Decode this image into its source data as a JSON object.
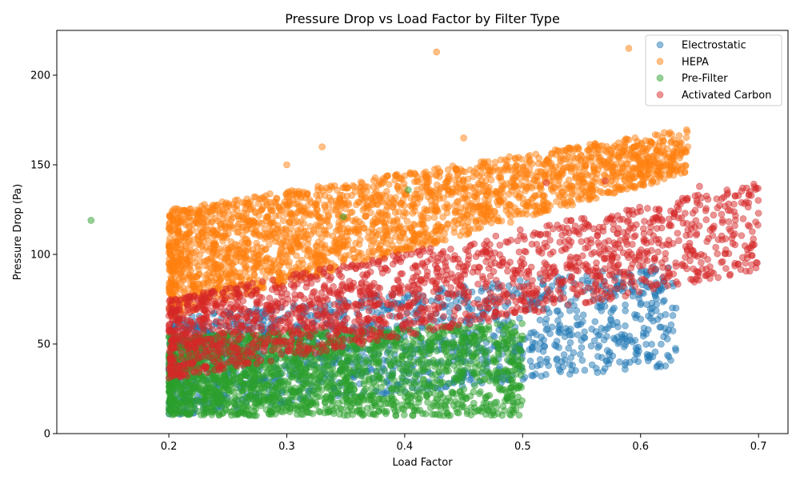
{
  "chart_data": {
    "type": "scatter",
    "title": "Pressure Drop vs Load Factor by Filter Type",
    "xlabel": "Load Factor",
    "ylabel": "Pressure Drop (Pa)",
    "xlim": [
      0.105,
      0.725
    ],
    "ylim": [
      0,
      225
    ],
    "xticks": [
      "0.2",
      "0.3",
      "0.4",
      "0.5",
      "0.6",
      "0.7"
    ],
    "xtick_values": [
      0.2,
      0.3,
      0.4,
      0.5,
      0.6,
      0.7
    ],
    "yticks": [
      "0",
      "50",
      "100",
      "150",
      "200"
    ],
    "ytick_values": [
      0,
      50,
      100,
      150,
      200
    ],
    "grid": false,
    "legend_position": "top-right",
    "marker_alpha": 0.5,
    "series": [
      {
        "name": "Electrostatic",
        "color": "#1f77b4",
        "cloud": {
          "x_range": [
            0.2,
            0.63
          ],
          "y_low": [
            10,
            38
          ],
          "y_high": [
            65,
            95
          ],
          "count": 1400
        },
        "points": [
          [
            0.54,
            55
          ],
          [
            0.58,
            62
          ],
          [
            0.6,
            72
          ],
          [
            0.62,
            85
          ],
          [
            0.55,
            48
          ],
          [
            0.52,
            40
          ],
          [
            0.57,
            58
          ],
          [
            0.6,
            90
          ],
          [
            0.63,
            70
          ],
          [
            0.5,
            45
          ]
        ]
      },
      {
        "name": "HEPA",
        "color": "#ff7f0e",
        "cloud": {
          "x_range": [
            0.2,
            0.64
          ],
          "y_low": [
            65,
            145
          ],
          "y_high": [
            125,
            170
          ],
          "count": 2400
        },
        "points": [
          [
            0.427,
            213
          ],
          [
            0.59,
            215
          ],
          [
            0.62,
            168
          ],
          [
            0.64,
            160
          ],
          [
            0.33,
            160
          ],
          [
            0.3,
            150
          ],
          [
            0.45,
            165
          ]
        ]
      },
      {
        "name": "Pre-Filter",
        "color": "#2ca02c",
        "cloud": {
          "x_range": [
            0.2,
            0.5
          ],
          "y_low": [
            10,
            10
          ],
          "y_high": [
            55,
            62
          ],
          "count": 2100
        },
        "points": [
          [
            0.134,
            119
          ],
          [
            0.348,
            121
          ],
          [
            0.403,
            136
          ],
          [
            0.48,
            25
          ],
          [
            0.47,
            21
          ],
          [
            0.49,
            30
          ],
          [
            0.45,
            15
          ],
          [
            0.5,
            35
          ]
        ]
      },
      {
        "name": "Activated Carbon",
        "color": "#d62728",
        "cloud": {
          "x_range": [
            0.2,
            0.7
          ],
          "y_low": [
            30,
            90
          ],
          "y_high": [
            75,
            140
          ],
          "count": 1800
        },
        "points": [
          [
            0.6,
            124
          ],
          [
            0.65,
            138
          ],
          [
            0.69,
            137
          ],
          [
            0.7,
            123
          ],
          [
            0.695,
            105
          ],
          [
            0.68,
            95
          ],
          [
            0.66,
            90
          ],
          [
            0.62,
            85
          ],
          [
            0.57,
            141
          ],
          [
            0.52,
            140
          ]
        ]
      }
    ]
  }
}
